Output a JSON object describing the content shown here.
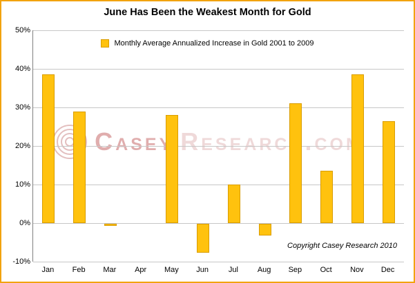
{
  "frame": {
    "border_color": "#F2A30E",
    "background_color": "#FFFFFF"
  },
  "title": "June Has Been the Weakest Month for Gold",
  "legend": {
    "label": "Monthly Average Annualized Increase in Gold 2001 to 2009",
    "marker_color": "#FFC20E",
    "marker_border_color": "#D99C00"
  },
  "watermark": {
    "logo": "spiral-icon",
    "text_primary": "Casey",
    "text_secondary": "Research.com"
  },
  "copyright": "Copyright Casey Research 2010",
  "chart_data": {
    "type": "bar",
    "title": "June Has Been the Weakest Month for Gold",
    "categories": [
      "Jan",
      "Feb",
      "Mar",
      "Apr",
      "May",
      "Jun",
      "Jul",
      "Aug",
      "Sep",
      "Oct",
      "Nov",
      "Dec"
    ],
    "values": [
      38.5,
      29,
      -0.5,
      0,
      28,
      -7.5,
      10,
      -3,
      31,
      13.5,
      38.5,
      26.5
    ],
    "series_name": "Monthly Average Annualized Increase in Gold 2001 to 2009",
    "xlabel": "",
    "ylabel": "",
    "ylim": [
      -10,
      50
    ],
    "ytick_step": 10,
    "ytick_labels": [
      "50%",
      "40%",
      "30%",
      "20%",
      "10%",
      "0%",
      "-10%"
    ],
    "grid": true,
    "legend_position": "top-center",
    "bar_color": "#FFC20E",
    "bar_border_color": "#D99C00"
  }
}
